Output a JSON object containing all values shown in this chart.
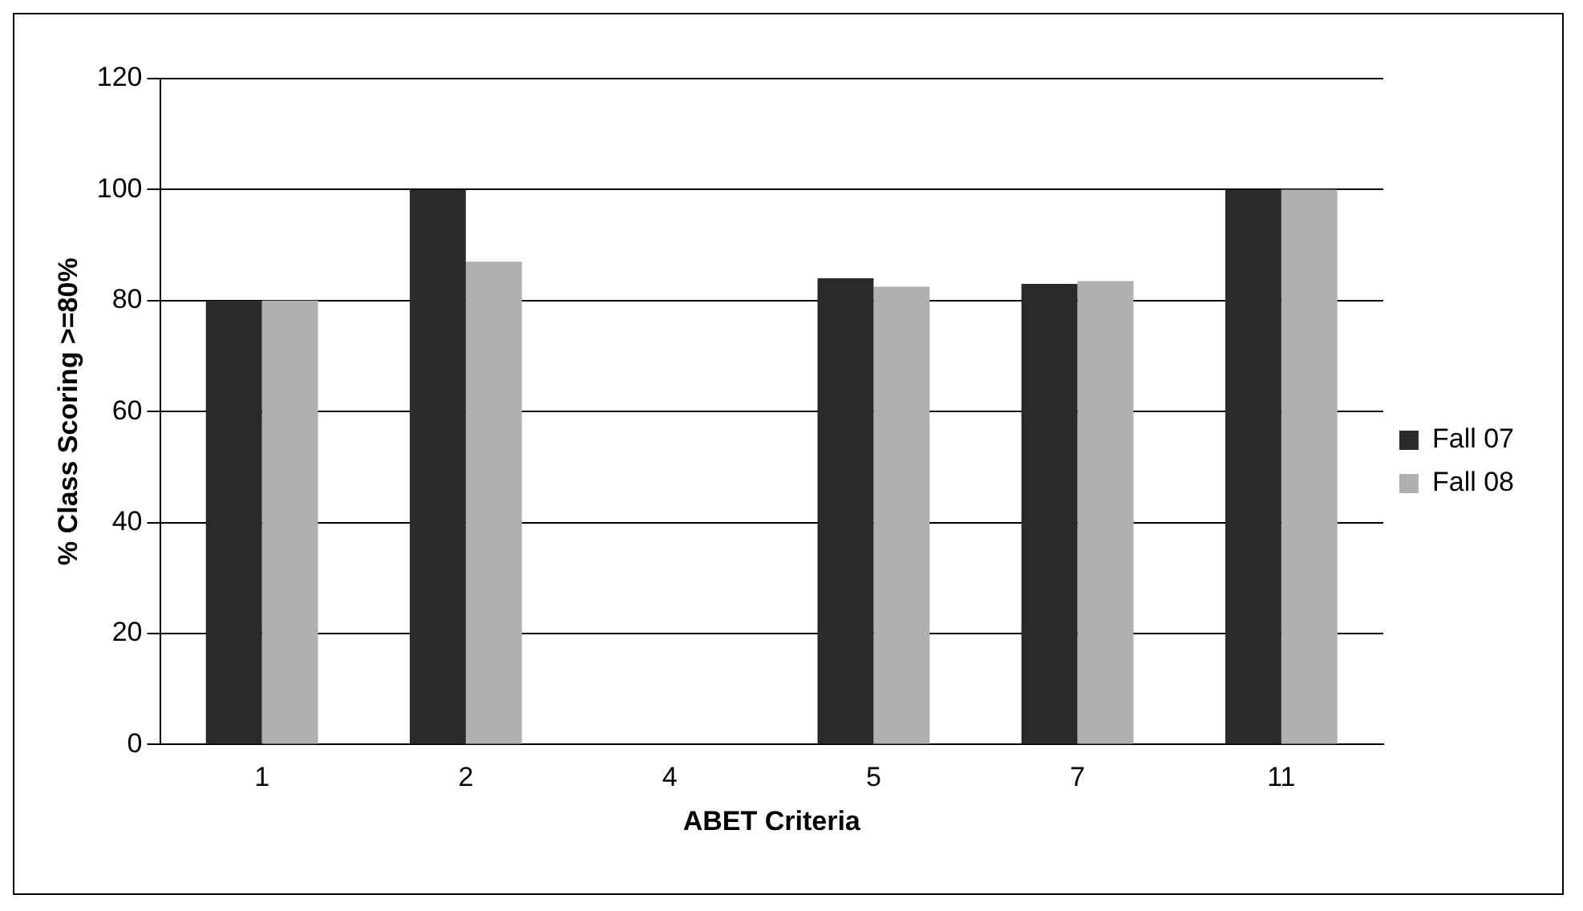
{
  "chart_data": {
    "type": "bar",
    "xlabel": "ABET Criteria",
    "ylabel": "% Class Scoring >=80%",
    "categories": [
      "1",
      "2",
      "4",
      "5",
      "7",
      "11"
    ],
    "series": [
      {
        "name": "Fall 07",
        "color": "#2a2a2a",
        "values": [
          80,
          100,
          null,
          84,
          83,
          100
        ]
      },
      {
        "name": "Fall 08",
        "color": "#b0b0b0",
        "values": [
          80,
          87,
          null,
          82.5,
          83.5,
          100
        ]
      }
    ],
    "ylim": [
      0,
      120
    ],
    "yticks": [
      0,
      20,
      40,
      60,
      80,
      100,
      120
    ],
    "grid": "y",
    "legend": "right"
  }
}
